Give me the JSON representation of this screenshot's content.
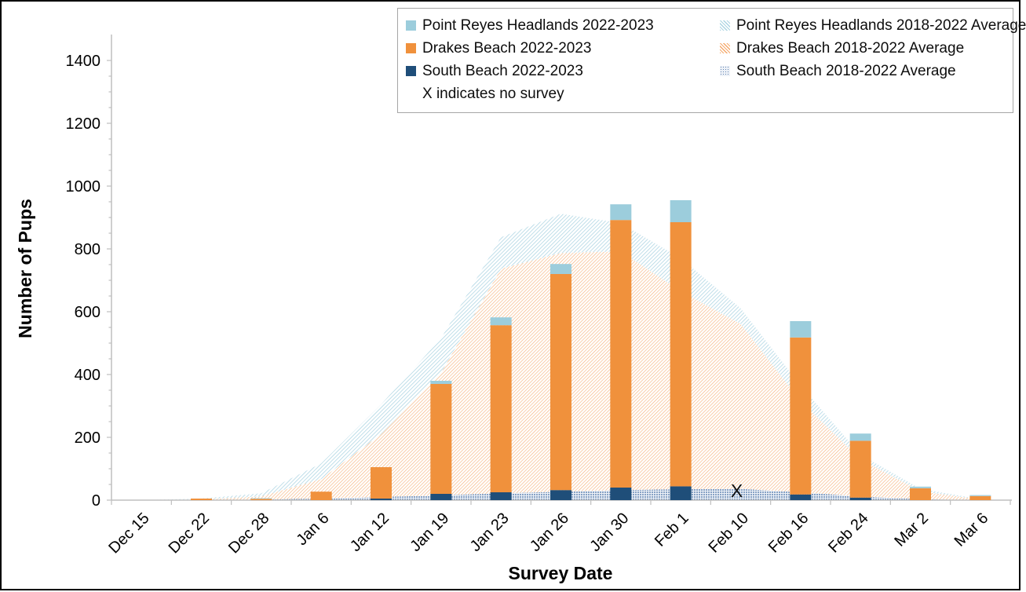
{
  "figure": {
    "y_axis_title": "Number of Pups",
    "x_axis_title": "Survey Date",
    "note": "X indicates no survey"
  },
  "legend": {
    "items": [
      {
        "label": "Point Reyes Headlands 2022-2023",
        "swatch": "solid",
        "series": "prh"
      },
      {
        "label": "Point Reyes Headlands 2018-2022 Average",
        "swatch": "hatch",
        "series": "prh"
      },
      {
        "label": "Drakes Beach 2022-2023",
        "swatch": "solid",
        "series": "drakes"
      },
      {
        "label": "Drakes Beach 2018-2022 Average",
        "swatch": "hatch",
        "series": "drakes"
      },
      {
        "label": "South Beach 2022-2023",
        "swatch": "solid",
        "series": "south"
      },
      {
        "label": "South Beach 2018-2022 Average",
        "swatch": "dots",
        "series": "south"
      }
    ],
    "note": "X indicates no survey"
  },
  "colors": {
    "prh_solid": "#9CCDDC",
    "drakes_solid": "#F0913C",
    "south_solid": "#1F4E79",
    "prh_hatch": "#ABD4E2",
    "drakes_hatch": "#F5A96B",
    "south_dots": "#5D81B0",
    "axis_line": "#BFBFBF",
    "text": "#000000"
  },
  "chart_data": {
    "type": "combo: stacked bars (2022-2023 counts) over stacked areas (2018-2022 averages)",
    "title": "",
    "xlabel": "Survey Date",
    "ylabel": "Number of Pups",
    "ylim": [
      0,
      1400
    ],
    "y_tick_step": 200,
    "y_minor_tick_step": 50,
    "y_tick_labels": [
      "0",
      "200",
      "400",
      "600",
      "800",
      "1000",
      "1200",
      "1400"
    ],
    "grid": false,
    "legend_position": "top-right, two columns, boxed",
    "categories": [
      "Dec 15",
      "Dec 22",
      "Dec 28",
      "Jan 6",
      "Jan 12",
      "Jan 19",
      "Jan 23",
      "Jan 26",
      "Jan 30",
      "Feb 1",
      "Feb 10",
      "Feb 16",
      "Feb 24",
      "Mar 2",
      "Mar 6"
    ],
    "bar_series": [
      {
        "name": "South Beach 2022-2023",
        "style": "solid",
        "colorKey": "south_solid",
        "values": [
          0,
          0,
          0,
          0,
          5,
          20,
          25,
          32,
          40,
          44,
          0,
          18,
          8,
          0,
          0
        ]
      },
      {
        "name": "Drakes Beach 2022-2023",
        "style": "solid",
        "colorKey": "drakes_solid",
        "values": [
          0,
          5,
          4,
          27,
          100,
          350,
          532,
          688,
          852,
          841,
          0,
          500,
          181,
          38,
          13
        ]
      },
      {
        "name": "Point Reyes Headlands 2022-2023",
        "style": "solid",
        "colorKey": "prh_solid",
        "values": [
          0,
          0,
          2,
          0,
          0,
          10,
          25,
          32,
          50,
          70,
          0,
          52,
          23,
          5,
          3
        ]
      }
    ],
    "bar_totals": [
      0,
      5,
      6,
      27,
      105,
      380,
      582,
      752,
      942,
      955,
      null,
      570,
      212,
      43,
      16
    ],
    "area_series": [
      {
        "name": "South Beach 2018-2022 Average",
        "style": "dots",
        "colorKey": "south_dots",
        "values": [
          0,
          0,
          2,
          5,
          10,
          15,
          22,
          27,
          32,
          35,
          36,
          25,
          12,
          3,
          0
        ]
      },
      {
        "name": "Drakes Beach 2018-2022 Average",
        "style": "hatch",
        "colorKey": "drakes_hatch",
        "values": [
          0,
          2,
          10,
          62,
          200,
          390,
          715,
          760,
          760,
          630,
          525,
          290,
          118,
          25,
          2
        ]
      },
      {
        "name": "Point Reyes Headlands 2018-2022 Average",
        "style": "hatch",
        "colorKey": "prh_hatch",
        "values": [
          0,
          3,
          10,
          50,
          95,
          110,
          100,
          125,
          90,
          105,
          50,
          50,
          15,
          8,
          1
        ]
      }
    ],
    "no_survey": {
      "category": "Feb 10",
      "index": 10,
      "marker": "X"
    }
  }
}
